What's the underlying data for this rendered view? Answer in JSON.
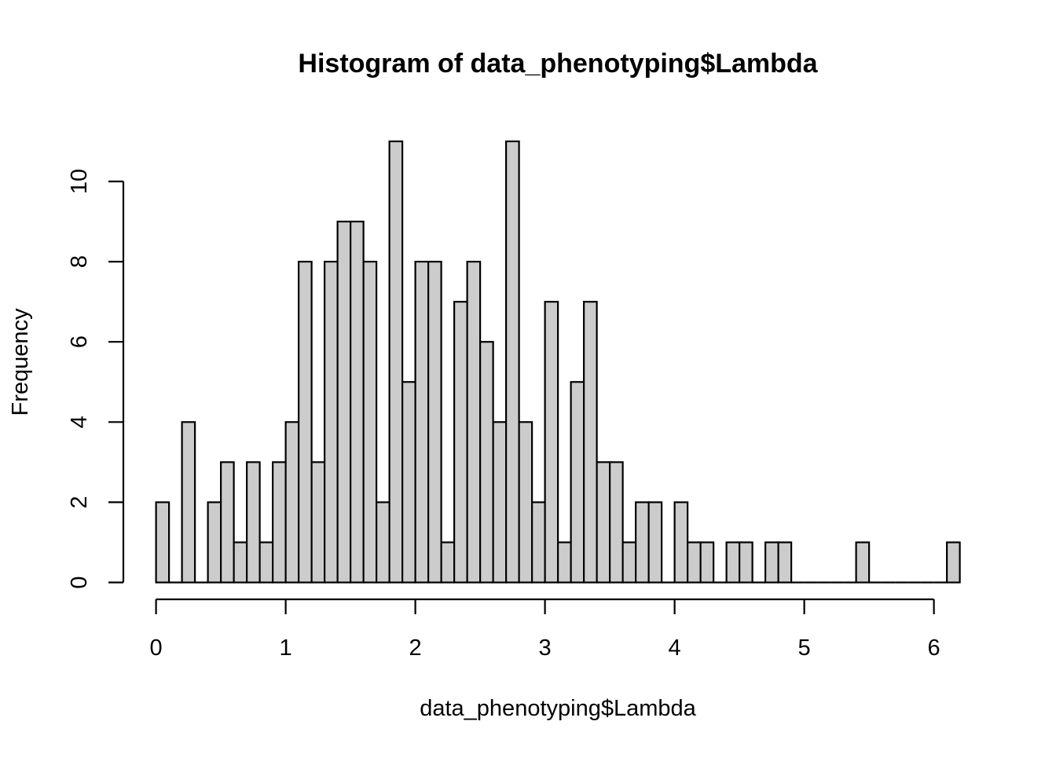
{
  "chart_data": {
    "type": "bar",
    "title": "Histogram of data_phenotyping$Lambda",
    "xlabel": "data_phenotyping$Lambda",
    "ylabel": "Frequency",
    "bin_width": 0.1,
    "bin_start": 0,
    "values": [
      2,
      0,
      4,
      0,
      2,
      3,
      1,
      3,
      1,
      3,
      4,
      8,
      3,
      8,
      9,
      9,
      8,
      2,
      11,
      5,
      8,
      8,
      1,
      7,
      8,
      6,
      4,
      11,
      4,
      2,
      7,
      1,
      5,
      7,
      3,
      3,
      1,
      2,
      2,
      0,
      2,
      1,
      1,
      0,
      1,
      1,
      0,
      1,
      1,
      0,
      0,
      0,
      0,
      0,
      1,
      0,
      0,
      0,
      0,
      0,
      0,
      1
    ],
    "xlim": [
      0,
      6.2
    ],
    "ylim": [
      0,
      11
    ],
    "x_ticks": [
      "0",
      "1",
      "2",
      "3",
      "4",
      "5",
      "6"
    ],
    "y_ticks": [
      "0",
      "2",
      "4",
      "6",
      "8",
      "10"
    ],
    "bar_fill": "#cccccc",
    "bar_stroke": "#000000",
    "grid": false,
    "legend": "none"
  }
}
